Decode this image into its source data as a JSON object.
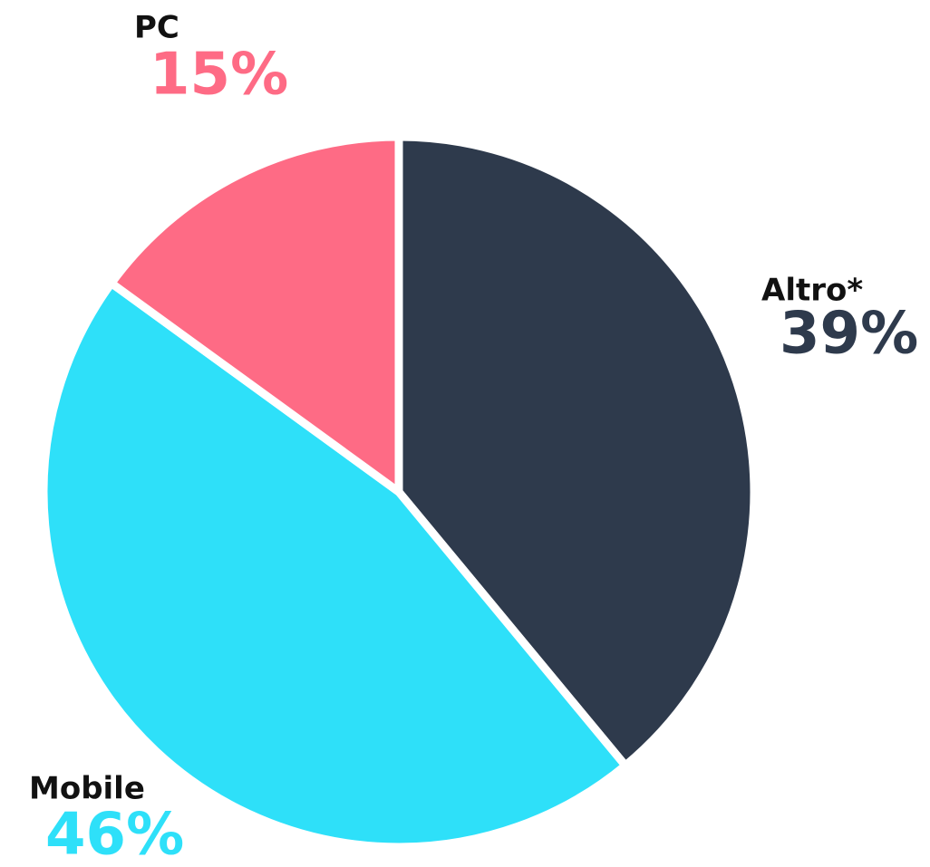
{
  "chart_data": {
    "type": "pie",
    "categories": [
      "Altro*",
      "Mobile",
      "PC"
    ],
    "values": [
      39,
      46,
      15
    ],
    "value_labels": [
      "39%",
      "46%",
      "15%"
    ],
    "colors": [
      "#2e3a4c",
      "#2ee0f9",
      "#fe6b85"
    ]
  }
}
